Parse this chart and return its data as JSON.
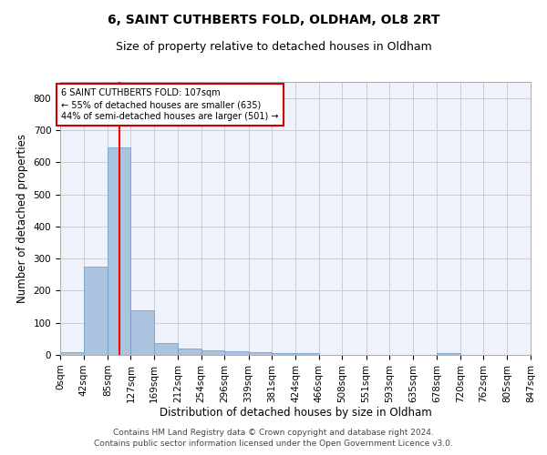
{
  "title1": "6, SAINT CUTHBERTS FOLD, OLDHAM, OL8 2RT",
  "title2": "Size of property relative to detached houses in Oldham",
  "xlabel": "Distribution of detached houses by size in Oldham",
  "ylabel": "Number of detached properties",
  "footnote1": "Contains HM Land Registry data © Crown copyright and database right 2024.",
  "footnote2": "Contains public sector information licensed under the Open Government Licence v3.0.",
  "bar_edges": [
    0,
    42,
    85,
    127,
    169,
    212,
    254,
    296,
    339,
    381,
    424,
    466,
    508,
    551,
    593,
    635,
    678,
    720,
    762,
    805,
    847
  ],
  "bar_heights": [
    8,
    275,
    645,
    140,
    37,
    20,
    13,
    11,
    9,
    6,
    7,
    0,
    0,
    0,
    0,
    0,
    6,
    0,
    0,
    0
  ],
  "bar_color": "#aac4e0",
  "bar_edge_color": "#6699cc",
  "bg_color": "#eef2fb",
  "grid_color": "#cccccc",
  "red_line_x": 107,
  "annotation_text": "6 SAINT CUTHBERTS FOLD: 107sqm\n← 55% of detached houses are smaller (635)\n44% of semi-detached houses are larger (501) →",
  "annotation_box_color": "#ffffff",
  "annotation_box_edge": "#cc0000",
  "ylim": [
    0,
    850
  ],
  "yticks": [
    0,
    100,
    200,
    300,
    400,
    500,
    600,
    700,
    800
  ],
  "xtick_labels": [
    "0sqm",
    "42sqm",
    "85sqm",
    "127sqm",
    "169sqm",
    "212sqm",
    "254sqm",
    "296sqm",
    "339sqm",
    "381sqm",
    "424sqm",
    "466sqm",
    "508sqm",
    "551sqm",
    "593sqm",
    "635sqm",
    "678sqm",
    "720sqm",
    "762sqm",
    "805sqm",
    "847sqm"
  ],
  "title_fontsize": 10,
  "subtitle_fontsize": 9,
  "axis_label_fontsize": 8.5,
  "tick_fontsize": 7.5,
  "footnote_fontsize": 6.5
}
